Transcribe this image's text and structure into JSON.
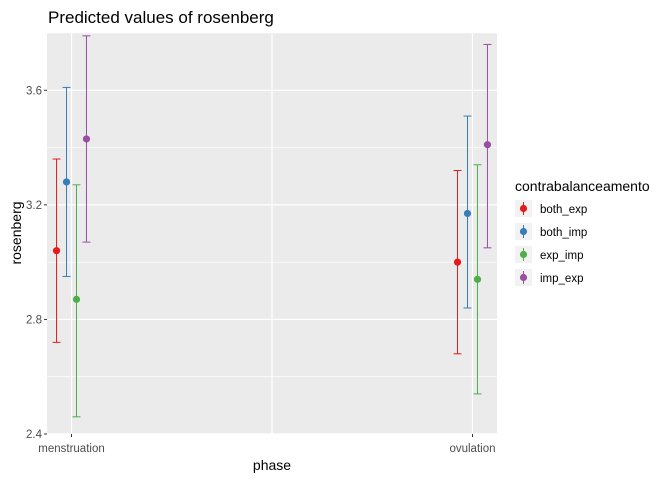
{
  "chart_data": {
    "type": "scatter",
    "title": "Predicted values of rosenberg",
    "xlabel": "phase",
    "ylabel": "rosenberg",
    "categories": [
      "menstruation",
      "ovulation"
    ],
    "ylim": [
      2.4,
      3.8
    ],
    "yticks": [
      2.4,
      2.8,
      3.2,
      3.6
    ],
    "ytick_labels": [
      "2.4",
      "2.8",
      "3.2",
      "3.6"
    ],
    "grid": true,
    "legend": {
      "title": "contrabalanceamento",
      "position": "right"
    },
    "series": [
      {
        "name": "both_exp",
        "color": "#e41a1c",
        "values": [
          3.04,
          3.0
        ],
        "lower": [
          2.72,
          2.68
        ],
        "upper": [
          3.36,
          3.32
        ]
      },
      {
        "name": "both_imp",
        "color": "#377eb8",
        "values": [
          3.28,
          3.17
        ],
        "lower": [
          2.95,
          2.84
        ],
        "upper": [
          3.61,
          3.51
        ]
      },
      {
        "name": "exp_imp",
        "color": "#4daf4a",
        "values": [
          2.87,
          2.94
        ],
        "lower": [
          2.46,
          2.54
        ],
        "upper": [
          3.27,
          3.34
        ]
      },
      {
        "name": "imp_exp",
        "color": "#984ea3",
        "values": [
          3.43,
          3.41
        ],
        "lower": [
          3.07,
          3.05
        ],
        "upper": [
          3.79,
          3.76
        ]
      }
    ]
  }
}
